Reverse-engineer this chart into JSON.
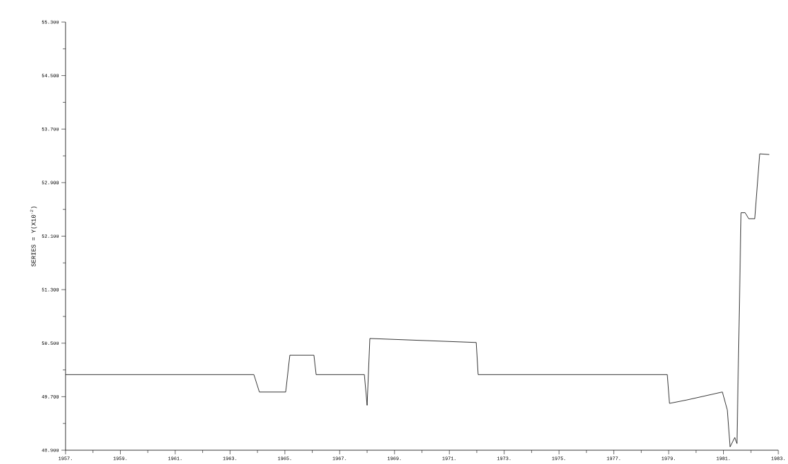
{
  "chart_data": {
    "type": "line",
    "ylabel": "SERIES = Y(X10$^{-2}$)",
    "x": [
      1957,
      1963.87,
      1964.07,
      1965.03,
      1965.18,
      1966.06,
      1966.14,
      1967.9,
      1968.0,
      1968.1,
      1971.98,
      1972.05,
      1978.95,
      1979.03,
      1979.65,
      1980.96,
      1981.14,
      1981.24,
      1981.41,
      1981.49,
      1981.64,
      1981.79,
      1981.92,
      1982.14,
      1982.32,
      1982.67
    ],
    "series": [
      {
        "color": "#000000",
        "values": [
          50.03,
          50.03,
          49.77,
          49.77,
          50.32,
          50.32,
          50.03,
          50.03,
          49.57,
          50.57,
          50.51,
          50.03,
          50.03,
          49.6,
          49.65,
          49.77,
          49.5,
          48.95,
          49.09,
          49.0,
          52.45,
          52.45,
          52.36,
          52.36,
          53.33,
          53.32
        ]
      }
    ],
    "xlim": [
      1957,
      1983
    ],
    "ylim": [
      48.9,
      55.3
    ],
    "xticks": [
      {
        "value": 1957,
        "label": "1957."
      },
      {
        "value": 1959,
        "label": "1959."
      },
      {
        "value": 1961,
        "label": "1961."
      },
      {
        "value": 1963,
        "label": "1963."
      },
      {
        "value": 1965,
        "label": "1965."
      },
      {
        "value": 1967,
        "label": "1967."
      },
      {
        "value": 1969,
        "label": "1969."
      },
      {
        "value": 1971,
        "label": "1971."
      },
      {
        "value": 1973,
        "label": "1973."
      },
      {
        "value": 1975,
        "label": "1975."
      },
      {
        "value": 1977,
        "label": "1977."
      },
      {
        "value": 1979,
        "label": "1979."
      },
      {
        "value": 1981,
        "label": "1981."
      },
      {
        "value": 1983,
        "label": "1983."
      }
    ],
    "yticks": [
      {
        "value": 48.9,
        "label": "48.900"
      },
      {
        "value": 49.7,
        "label": "49.700"
      },
      {
        "value": 50.5,
        "label": "50.500"
      },
      {
        "value": 51.3,
        "label": "51.300"
      },
      {
        "value": 52.1,
        "label": "52.100"
      },
      {
        "value": 52.9,
        "label": "52.900"
      },
      {
        "value": 53.7,
        "label": "53.700"
      },
      {
        "value": 54.5,
        "label": "54.500"
      },
      {
        "value": 55.3,
        "label": "55.300"
      }
    ],
    "grid": false,
    "marker": "none",
    "line_style": "solid"
  }
}
